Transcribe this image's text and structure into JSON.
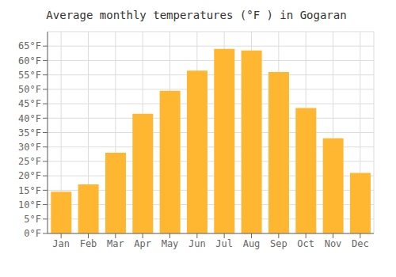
{
  "chart_data": {
    "type": "bar",
    "title": "Average monthly temperatures (°F ) in Gogaran",
    "categories": [
      "Jan",
      "Feb",
      "Mar",
      "Apr",
      "May",
      "Jun",
      "Jul",
      "Aug",
      "Sep",
      "Oct",
      "Nov",
      "Dec"
    ],
    "values": [
      14.5,
      17,
      28,
      41.5,
      49.5,
      56.5,
      64,
      63.5,
      56,
      43.5,
      33,
      21
    ],
    "color": "#FFB732",
    "ylim": [
      0,
      70
    ],
    "yticks": [
      {
        "value": 0,
        "label": "0°F"
      },
      {
        "value": 5,
        "label": "5°F"
      },
      {
        "value": 10,
        "label": "10°F"
      },
      {
        "value": 15,
        "label": "15°F"
      },
      {
        "value": 20,
        "label": "20°F"
      },
      {
        "value": 25,
        "label": "25°F"
      },
      {
        "value": 30,
        "label": "30°F"
      },
      {
        "value": 35,
        "label": "35°F"
      },
      {
        "value": 40,
        "label": "40°F"
      },
      {
        "value": 45,
        "label": "45°F"
      },
      {
        "value": 50,
        "label": "50°F"
      },
      {
        "value": 55,
        "label": "55°F"
      },
      {
        "value": 60,
        "label": "60°F"
      },
      {
        "value": 65,
        "label": "65°F"
      }
    ],
    "grid": true
  }
}
